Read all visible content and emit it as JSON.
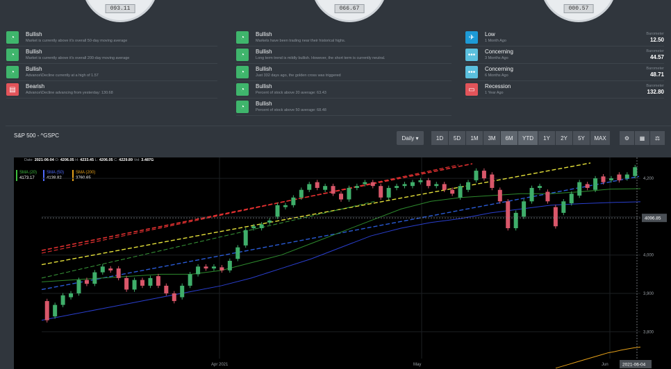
{
  "gauges": [
    {
      "value": "093.11"
    },
    {
      "value": "066.67"
    },
    {
      "value": "000.57"
    }
  ],
  "col1": [
    {
      "title": "Bullish",
      "desc": "Market is currently above it's overall 50-day moving average",
      "color": "#3fb56c",
      "icon": "speedometer-icon",
      "glyph": "◔"
    },
    {
      "title": "Bullish",
      "desc": "Market is currently above it's overall 200-day moving average",
      "color": "#3fb56c",
      "icon": "speedometer-icon",
      "glyph": "◔"
    },
    {
      "title": "Bullish",
      "desc": "Advance\\Decline currently at a high of 1.57",
      "color": "#3fb56c",
      "icon": "speedometer-icon",
      "glyph": "◔"
    },
    {
      "title": "Bearish",
      "desc": "Advance\\Decline advancing from yesterday: 130.68",
      "color": "#e2545a",
      "icon": "document-icon",
      "glyph": "▤"
    }
  ],
  "col2": [
    {
      "title": "Bullish",
      "desc": "Markets have been trading near their historical highs.",
      "color": "#3fb56c",
      "icon": "speedometer-icon",
      "glyph": "◔"
    },
    {
      "title": "Bullish",
      "desc": "Long term trend is mildly bullish. However, the short term is currently neutral.",
      "color": "#3fb56c",
      "icon": "speedometer-icon",
      "glyph": "◔"
    },
    {
      "title": "Bullish",
      "desc": "Just 332 days ago, the golden cross was triggered",
      "color": "#3fb56c",
      "icon": "speedometer-icon",
      "glyph": "◔"
    },
    {
      "title": "Bullish",
      "desc": "Percent of stock above 20 average: 63.43",
      "color": "#3fb56c",
      "icon": "speedometer-icon",
      "glyph": "◔"
    },
    {
      "title": "Bullish",
      "desc": "Percent of stock above 50 average: 68.48",
      "color": "#3fb56c",
      "icon": "speedometer-icon",
      "glyph": "◔"
    }
  ],
  "col3": [
    {
      "title": "Low",
      "desc": "1 Month Ago",
      "barolabel": "Barometer",
      "barovalue": "12.50",
      "color": "#1d9ad6",
      "icon": "plane-icon",
      "glyph": "✈"
    },
    {
      "title": "Concerning",
      "desc": "3 Months Ago",
      "barolabel": "Barometer",
      "barovalue": "44.57",
      "color": "#5bc0de",
      "icon": "dots-icon",
      "glyph": "•••"
    },
    {
      "title": "Concerning",
      "desc": "6 Months Ago",
      "barolabel": "Barometer",
      "barovalue": "48.71",
      "color": "#5bc0de",
      "icon": "dots-icon",
      "glyph": "•••"
    },
    {
      "title": "Recession",
      "desc": "1 Year Ago",
      "barolabel": "Barometer",
      "barovalue": "132.80",
      "color": "#e2545a",
      "icon": "chat-icon",
      "glyph": "▭"
    }
  ],
  "panel": {
    "title": "S&P 500 - ^GSPC",
    "interval": "Daily ▾",
    "ranges": [
      "1D",
      "5D",
      "1M",
      "3M",
      "6M",
      "YTD",
      "1Y",
      "2Y",
      "5Y",
      "MAX"
    ],
    "active_ranges": [
      "6M",
      "YTD"
    ],
    "tools": [
      {
        "icon": "settings-icon",
        "glyph": "⚙"
      },
      {
        "icon": "calculator-icon",
        "glyph": "▦"
      },
      {
        "icon": "scale-icon",
        "glyph": "⚖"
      }
    ]
  },
  "legend": {
    "date_label": "Date:",
    "date": "2021-06-04",
    "o_label": "O:",
    "o": "4206.05",
    "h_label": "H:",
    "h": "4233.45",
    "l_label": "L:",
    "l": "4206.05",
    "c_label": "C:",
    "c": "4229.89",
    "v_label": "Vol:",
    "v": "3.487G"
  },
  "smas": [
    {
      "label": "SMA (20)",
      "value": "4173.17",
      "color": "#3fbf3f"
    },
    {
      "label": "SMA (50)",
      "value": "4138.82",
      "color": "#4f6bff"
    },
    {
      "label": "SMA (200)",
      "value": "3760.65",
      "color": "#e6a11a"
    }
  ],
  "chart_data": {
    "type": "candlestick",
    "y_ticks": [
      "4,200",
      "4,100",
      "4,000",
      "3,900",
      "3,800"
    ],
    "x_ticks": [
      "Apr 2021",
      "May",
      "Jun"
    ],
    "crosshair_price": "4096.85",
    "crosshair_date": "2021-06-04",
    "ylim": [
      3730,
      4240
    ],
    "candles": [
      [
        3880,
        3830
      ],
      [
        3840,
        3870
      ],
      [
        3870,
        3895
      ],
      [
        3890,
        3900
      ],
      [
        3900,
        3935
      ],
      [
        3935,
        3925
      ],
      [
        3925,
        3955
      ],
      [
        3955,
        3970
      ],
      [
        3965,
        3960
      ],
      [
        3965,
        3940
      ],
      [
        3940,
        3910
      ],
      [
        3910,
        3935
      ],
      [
        3935,
        3920
      ],
      [
        3920,
        3940
      ],
      [
        3945,
        3920
      ],
      [
        3920,
        3900
      ],
      [
        3900,
        3880
      ],
      [
        3890,
        3920
      ],
      [
        3920,
        3950
      ],
      [
        3950,
        3970
      ],
      [
        3970,
        3965
      ],
      [
        3965,
        3970
      ],
      [
        3968,
        3960
      ],
      [
        3960,
        3985
      ],
      [
        3990,
        4020
      ],
      [
        4025,
        4065
      ],
      [
        4070,
        4075
      ],
      [
        4070,
        4080
      ],
      [
        4085,
        4090
      ],
      [
        4100,
        4130
      ],
      [
        4125,
        4130
      ],
      [
        4130,
        4150
      ],
      [
        4150,
        4170
      ],
      [
        4170,
        4185
      ],
      [
        4190,
        4175
      ],
      [
        4170,
        4180
      ],
      [
        4180,
        4160
      ],
      [
        4160,
        4145
      ],
      [
        4145,
        4175
      ],
      [
        4175,
        4180
      ],
      [
        4185,
        4190
      ],
      [
        4190,
        4180
      ],
      [
        4180,
        4150
      ],
      [
        4150,
        4175
      ],
      [
        4175,
        4180
      ],
      [
        4180,
        4185
      ],
      [
        4180,
        4190
      ],
      [
        4190,
        4195
      ],
      [
        4195,
        4180
      ],
      [
        4180,
        4185
      ],
      [
        4185,
        4170
      ],
      [
        4170,
        4160
      ],
      [
        4150,
        4180
      ],
      [
        4170,
        4190
      ],
      [
        4195,
        4220
      ],
      [
        4220,
        4200
      ],
      [
        4210,
        4175
      ],
      [
        4170,
        4140
      ],
      [
        4140,
        4070
      ],
      [
        4070,
        4110
      ],
      [
        4100,
        4140
      ],
      [
        4140,
        4175
      ],
      [
        4175,
        4180
      ],
      [
        4165,
        4140
      ],
      [
        4125,
        4075
      ],
      [
        4110,
        4140
      ],
      [
        4135,
        4160
      ],
      [
        4155,
        4190
      ],
      [
        4185,
        4175
      ],
      [
        4170,
        4200
      ],
      [
        4205,
        4190
      ],
      [
        4195,
        4200
      ],
      [
        4210,
        4195
      ],
      [
        4200,
        4210
      ],
      [
        4206,
        4229
      ]
    ],
    "sma20_series": [
      3930,
      3935,
      3940,
      3945,
      3950,
      3950,
      3960,
      3980,
      4000,
      4030,
      4060,
      4090,
      4120,
      4140,
      4150,
      4155,
      4160,
      4160,
      4165,
      4172,
      4173
    ],
    "sma50_series": [
      3830,
      3845,
      3860,
      3875,
      3890,
      3905,
      3920,
      3940,
      3965,
      3990,
      4020,
      4050,
      4070,
      4085,
      4095,
      4110,
      4120,
      4130,
      4134,
      4137,
      4139
    ],
    "sma200_series": [
      3705,
      3710,
      3715,
      3720,
      3725,
      3730,
      3735,
      3740,
      3745,
      3748,
      3752,
      3755,
      3758,
      3760
    ]
  }
}
